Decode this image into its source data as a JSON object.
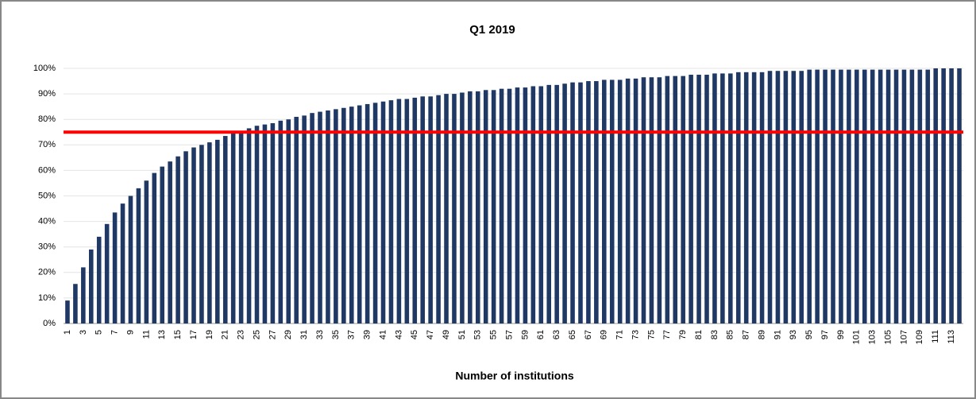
{
  "chart_data": {
    "type": "bar",
    "title": "Q1 2019",
    "x_label": "Number of institutions",
    "categories": [
      "1",
      null,
      "3",
      null,
      "5",
      null,
      "7",
      null,
      "9",
      null,
      "11",
      null,
      "13",
      null,
      "15",
      null,
      "17",
      null,
      "19",
      null,
      "21",
      null,
      "23",
      null,
      "25",
      null,
      "27",
      null,
      "29",
      null,
      "31",
      null,
      "33",
      null,
      "35",
      null,
      "37",
      null,
      "39",
      null,
      "41",
      null,
      "43",
      null,
      "45",
      null,
      "47",
      null,
      "49",
      null,
      "51",
      null,
      "53",
      null,
      "55",
      null,
      "57",
      null,
      "59",
      null,
      "61",
      null,
      "63",
      null,
      "65",
      null,
      "67",
      null,
      "69",
      null,
      "71",
      null,
      "73",
      null,
      "75",
      null,
      "77",
      null,
      "79",
      null,
      "81",
      null,
      "83",
      null,
      "85",
      null,
      "87",
      null,
      "89",
      null,
      "91",
      null,
      "93",
      null,
      "95",
      null,
      "97",
      null,
      "99",
      null,
      "101",
      null,
      "103",
      null,
      "105",
      null,
      "107",
      null,
      "109",
      null,
      "111",
      null,
      "113",
      null
    ],
    "values": [
      9,
      15.5,
      22,
      29,
      34,
      39,
      43.5,
      47,
      50,
      53,
      56,
      59,
      61.5,
      63.5,
      65.5,
      67.5,
      69,
      70,
      71,
      72,
      73.5,
      74.5,
      75.5,
      76.5,
      77.5,
      78,
      78.5,
      79.5,
      80,
      81,
      81.5,
      82.5,
      83,
      83.5,
      84,
      84.5,
      85,
      85.5,
      86,
      86.5,
      87,
      87.5,
      88,
      88,
      88.5,
      89,
      89,
      89.5,
      90,
      90,
      90.5,
      91,
      91,
      91.5,
      91.5,
      92,
      92,
      92.5,
      92.5,
      93,
      93,
      93.5,
      93.5,
      94,
      94.5,
      94.5,
      95,
      95,
      95.5,
      95.5,
      95.5,
      96,
      96,
      96.5,
      96.5,
      96.5,
      97,
      97,
      97,
      97.5,
      97.5,
      97.5,
      98,
      98,
      98,
      98.5,
      98.5,
      98.5,
      98.5,
      99,
      99,
      99,
      99,
      99,
      99.5,
      99.5,
      99.5,
      99.5,
      99.5,
      99.5,
      99.5,
      99.5,
      99.5,
      99.5,
      99.5,
      99.5,
      99.5,
      99.5,
      99.5,
      99.5,
      100,
      100,
      100,
      100
    ],
    "color": "#1f3864",
    "ylim": [
      0,
      100
    ],
    "yticks": [
      {
        "value": 0,
        "label": "0%"
      },
      {
        "value": 10,
        "label": "10%"
      },
      {
        "value": 20,
        "label": "20%"
      },
      {
        "value": 30,
        "label": "30%"
      },
      {
        "value": 40,
        "label": "40%"
      },
      {
        "value": 50,
        "label": "50%"
      },
      {
        "value": 60,
        "label": "60%"
      },
      {
        "value": 70,
        "label": "70%"
      },
      {
        "value": 80,
        "label": "80%"
      },
      {
        "value": 90,
        "label": "90%"
      },
      {
        "value": 100,
        "label": "100%"
      }
    ],
    "grid": true,
    "reference_line": {
      "value": 75,
      "color": "#ff0000"
    }
  }
}
